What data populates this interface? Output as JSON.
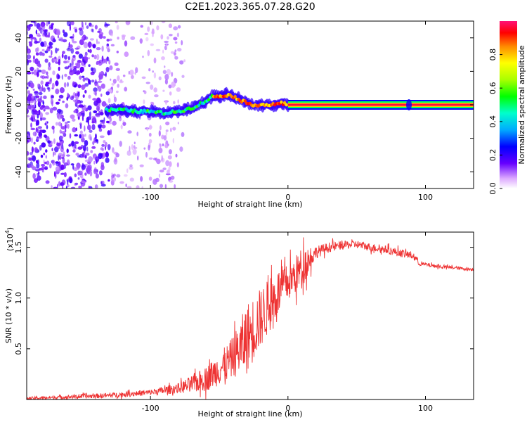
{
  "title": "C2E1.2023.365.07.28.G20",
  "chart_data": [
    {
      "type": "heatmap",
      "xlabel": "Height of straight line (km)",
      "ylabel": "Frequency (Hz)",
      "xlim": [
        -190,
        135
      ],
      "ylim": [
        -50,
        50
      ],
      "xticks": [
        -100,
        0,
        100
      ],
      "yticks": [
        -40,
        -20,
        0,
        20,
        40
      ],
      "colorbar": {
        "label": "Normalized spectral amplitude",
        "range": [
          0,
          1
        ],
        "ticks": [
          "0.0",
          "0.2",
          "0.4",
          "0.6",
          "0.8"
        ]
      },
      "ridge_trace": {
        "x": [
          -130,
          -120,
          -110,
          -100,
          -90,
          -80,
          -70,
          -60,
          -55,
          -50,
          -45,
          -40,
          -35,
          -30,
          -25,
          -20,
          -15,
          -10,
          -5,
          0,
          10,
          50,
          88,
          100,
          135
        ],
        "y": [
          -3,
          -3,
          -4,
          -4,
          -5,
          -4,
          -2,
          2,
          5,
          5,
          6,
          5,
          3,
          1,
          0,
          0,
          0,
          0,
          1,
          0,
          0,
          0,
          0,
          0,
          0
        ]
      },
      "carrier_line": {
        "x_start": 0,
        "x_end": 135,
        "frequency": 0
      },
      "noise_region": {
        "x_start": -190,
        "x_end": -75
      }
    },
    {
      "type": "line",
      "xlabel": "Height of straight line (km)",
      "ylabel": "SNR (10 * v/v)",
      "y_multiplier": "(x10",
      "y_multiplier_exp": "4",
      "y_multiplier_close": ")",
      "xlim": [
        -190,
        135
      ],
      "ylim": [
        0,
        1.65
      ],
      "xticks": [
        -100,
        0,
        100
      ],
      "yticks": [
        0.5,
        1.0,
        1.5
      ],
      "ytick_labels": [
        "0.5",
        "1.0",
        "1.5"
      ],
      "color": "#ee3333",
      "envelope": {
        "x": [
          -190,
          -170,
          -150,
          -130,
          -110,
          -100,
          -90,
          -80,
          -70,
          -60,
          -55,
          -50,
          -45,
          -40,
          -35,
          -30,
          -25,
          -20,
          -15,
          -10,
          -5,
          0,
          5,
          10,
          15,
          20,
          30,
          40,
          50,
          60,
          70,
          80,
          90,
          94,
          95,
          100,
          110,
          120,
          135
        ],
        "y": [
          0.01,
          0.02,
          0.03,
          0.04,
          0.06,
          0.07,
          0.09,
          0.11,
          0.15,
          0.2,
          0.25,
          0.3,
          0.35,
          0.42,
          0.5,
          0.6,
          0.7,
          0.8,
          0.9,
          1.0,
          1.1,
          1.15,
          1.22,
          1.3,
          1.38,
          1.45,
          1.5,
          1.52,
          1.53,
          1.5,
          1.48,
          1.45,
          1.42,
          1.38,
          1.34,
          1.33,
          1.31,
          1.3,
          1.28
        ]
      },
      "noise_amplitude": {
        "x": [
          -190,
          -100,
          -80,
          -60,
          -40,
          -30,
          -20,
          -10,
          0,
          10,
          15,
          20,
          40,
          90,
          95,
          135
        ],
        "y": [
          0.015,
          0.03,
          0.05,
          0.12,
          0.2,
          0.35,
          0.3,
          0.25,
          0.18,
          0.2,
          0.15,
          0.06,
          0.04,
          0.04,
          0.02,
          0.015
        ]
      }
    }
  ]
}
